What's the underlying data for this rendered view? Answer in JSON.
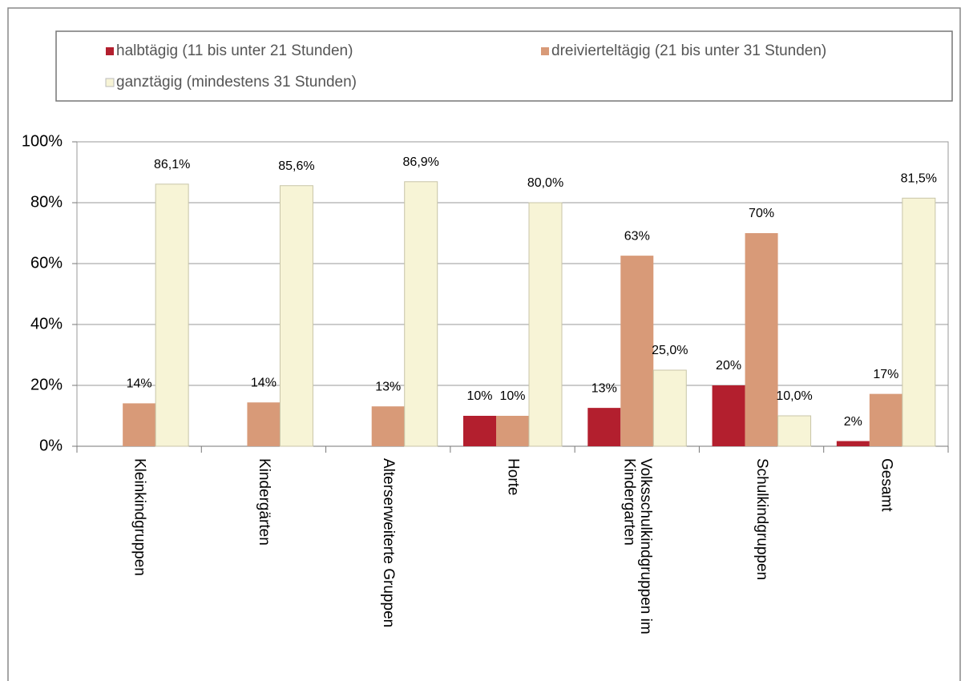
{
  "chart_data": {
    "type": "bar",
    "categories": [
      "Kleinkindgruppen",
      "Kindergärten",
      "Alterserweiterte Gruppen",
      "Horte",
      "Volksschulkindgruppen im Kindergarten",
      "Schulkindgruppen",
      "Gesamt"
    ],
    "series": [
      {
        "name": "halbtägig (11 bis unter 21 Stunden)",
        "color": "#b31f2e",
        "values": [
          null,
          null,
          null,
          10,
          12.6,
          20,
          1.7
        ],
        "value_labels": [
          null,
          null,
          null,
          "10%",
          "13%",
          "20%",
          "2%"
        ]
      },
      {
        "name": "dreivierteltägig (21 bis unter 31 Stunden)",
        "color": "#d89a78",
        "values": [
          14.1,
          14.4,
          13.1,
          10,
          62.6,
          70,
          17.2
        ],
        "value_labels": [
          "14%",
          "14%",
          "13%",
          "10%",
          "63%",
          "70%",
          "17%"
        ]
      },
      {
        "name": "ganztägig (mindestens 31 Stunden)",
        "color": "#f7f4d6",
        "values": [
          86.1,
          85.6,
          86.9,
          80.0,
          25.0,
          10.0,
          81.5
        ],
        "value_labels": [
          "86,1%",
          "85,6%",
          "86,9%",
          "80,0%",
          "25,0%",
          "10,0%",
          "81,5%"
        ]
      }
    ],
    "ylim": [
      0,
      100
    ],
    "yticks": [
      {
        "value": 0,
        "label": "0%"
      },
      {
        "value": 20,
        "label": "20%"
      },
      {
        "value": 40,
        "label": "40%"
      },
      {
        "value": 60,
        "label": "60%"
      },
      {
        "value": 80,
        "label": "80%"
      },
      {
        "value": 100,
        "label": "100%"
      }
    ],
    "grid": true,
    "legend": "top"
  }
}
